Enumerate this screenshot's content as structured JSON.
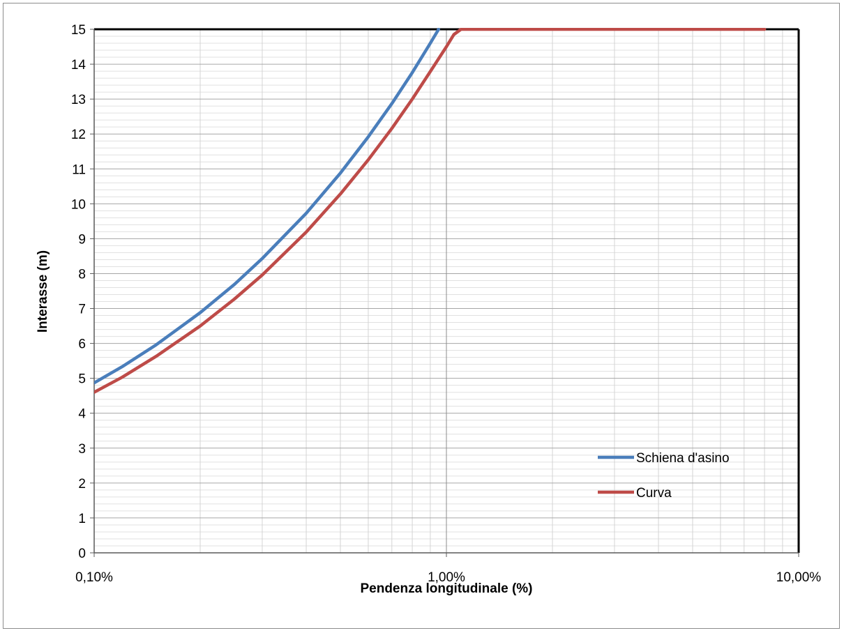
{
  "chart_data": {
    "type": "line",
    "xlabel": "Pendenza longitudinale (%)",
    "ylabel": "Interasse (m)",
    "xscale": "log",
    "xlim": [
      0.1,
      10
    ],
    "ylim": [
      0,
      15
    ],
    "grid": true,
    "legend_position": "bottom-right",
    "x_tick_labels": [
      {
        "value": 0.1,
        "label": "0,10%"
      },
      {
        "value": 1,
        "label": "1,00%"
      },
      {
        "value": 10,
        "label": "10,00%"
      }
    ],
    "y_ticks": [
      0,
      1,
      2,
      3,
      4,
      5,
      6,
      7,
      8,
      9,
      10,
      11,
      12,
      13,
      14,
      15
    ],
    "series": [
      {
        "name": "Schiena d'asino",
        "color": "#4a7ebb",
        "x": [
          0.1,
          0.12,
          0.15,
          0.2,
          0.25,
          0.3,
          0.4,
          0.5,
          0.6,
          0.7,
          0.8,
          0.9,
          0.95
        ],
        "y": [
          4.87,
          5.33,
          5.96,
          6.88,
          7.69,
          8.43,
          9.73,
          10.88,
          11.92,
          12.87,
          13.76,
          14.6,
          15.0
        ]
      },
      {
        "name": "Curva",
        "color": "#be4b48",
        "x": [
          0.1,
          0.12,
          0.15,
          0.2,
          0.25,
          0.3,
          0.4,
          0.5,
          0.6,
          0.7,
          0.8,
          0.9,
          1.0,
          1.05,
          1.1,
          2,
          5,
          8
        ],
        "y": [
          4.6,
          5.03,
          5.63,
          6.5,
          7.27,
          7.96,
          9.19,
          10.28,
          11.26,
          12.16,
          13.0,
          13.79,
          14.5,
          14.85,
          15.0,
          15.0,
          15.0,
          15.0
        ]
      }
    ]
  }
}
